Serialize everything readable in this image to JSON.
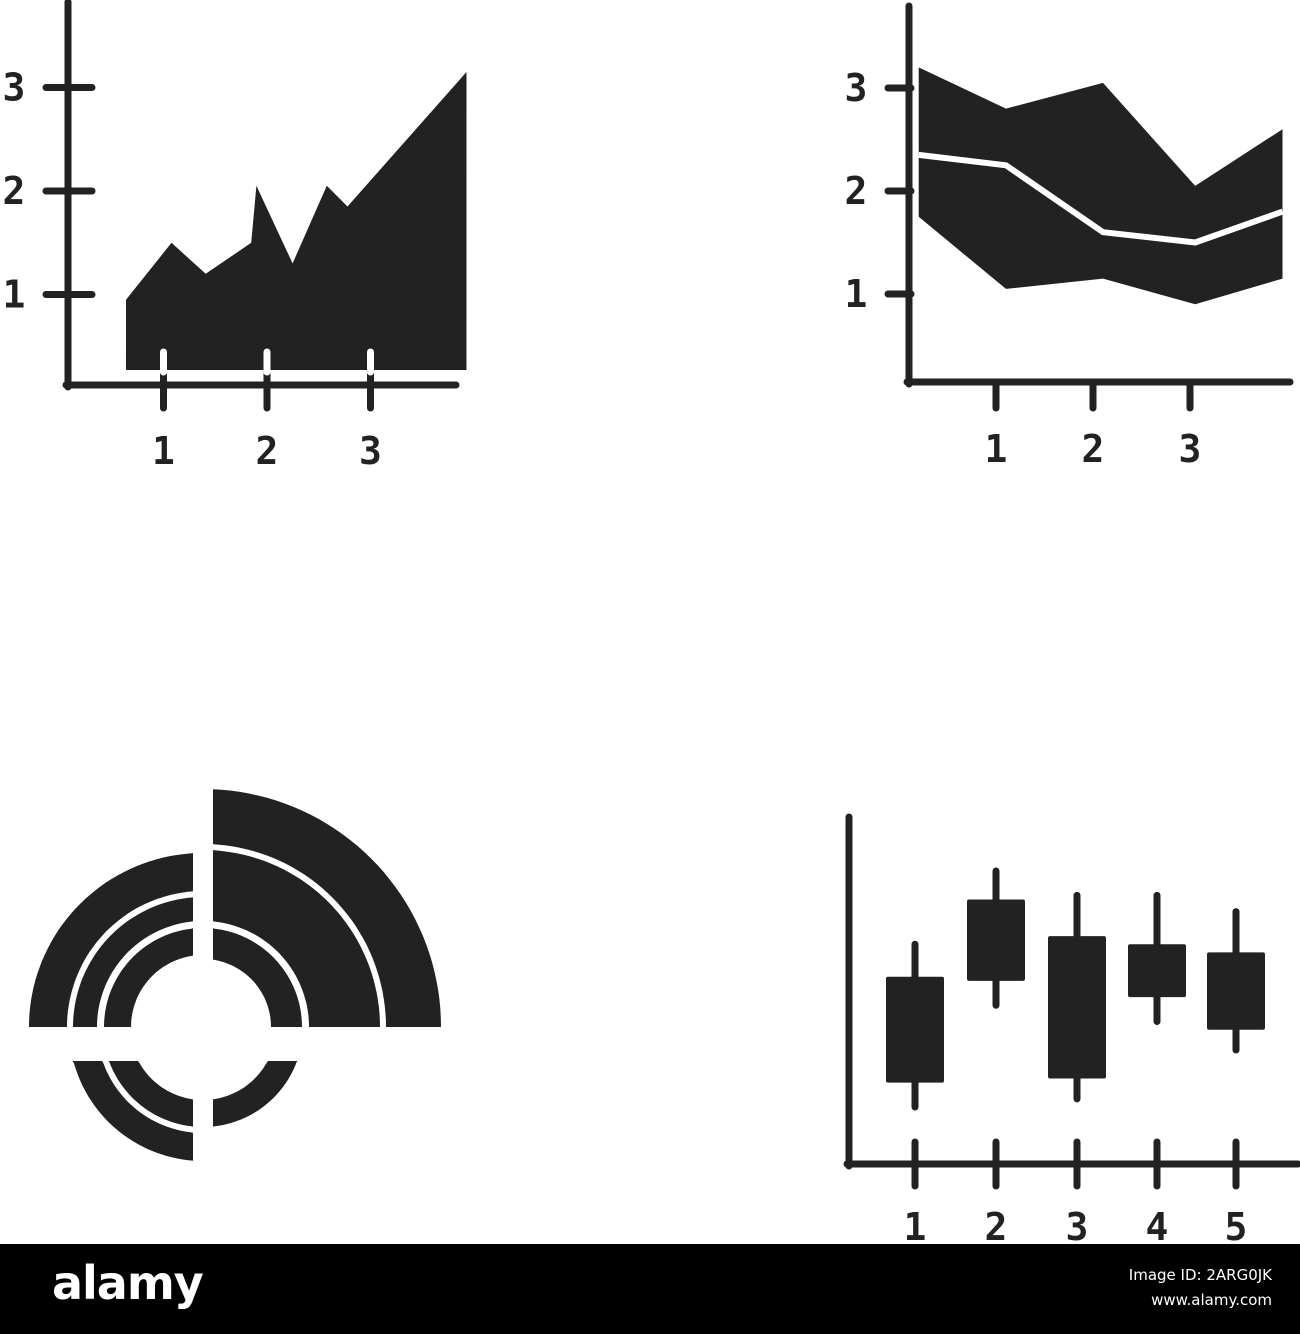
{
  "colors": {
    "ink": "#222222",
    "background": "#ffffff",
    "footer": "#000000"
  },
  "chart_data": [
    {
      "type": "area",
      "x": [
        0.56,
        1,
        1.33,
        1.77,
        1.82,
        2.17,
        2.5,
        2.7,
        3.85
      ],
      "values": [
        0.95,
        1.5,
        1.2,
        1.5,
        2.05,
        1.3,
        2.05,
        1.85,
        3.15
      ],
      "xlabel": "",
      "ylabel": "",
      "x_ticks": [
        "1",
        "2",
        "3"
      ],
      "y_ticks": [
        "1",
        "2",
        "3"
      ],
      "xlim": [
        0,
        4
      ],
      "ylim": [
        0,
        3.5
      ],
      "grid": false
    },
    {
      "type": "area",
      "x": [
        0.1,
        1,
        2,
        2.95,
        3.85
      ],
      "upper": [
        3.2,
        2.8,
        3.05,
        2.05,
        2.6
      ],
      "lower": [
        1.75,
        1.05,
        1.15,
        0.9,
        1.15
      ],
      "series": [
        {
          "values": [
            2.35,
            2.25,
            1.6,
            1.5,
            1.8
          ]
        }
      ],
      "xlabel": "",
      "ylabel": "",
      "x_ticks": [
        "1",
        "2",
        "3"
      ],
      "y_ticks": [
        "1",
        "2",
        "3"
      ],
      "xlim": [
        0,
        4
      ],
      "ylim": [
        0,
        3.5
      ],
      "grid": false
    },
    {
      "type": "pie",
      "rings": [
        {
          "ring": 1,
          "start": 0,
          "end": 90
        },
        {
          "ring": 2,
          "start": 0,
          "end": 90
        },
        {
          "ring": 3,
          "start": 0,
          "end": 90
        },
        {
          "ring": 1,
          "start": 270,
          "end": 360
        },
        {
          "ring": 2,
          "start": 270,
          "end": 360
        },
        {
          "ring": 3,
          "start": 270,
          "end": 360
        },
        {
          "ring": 1,
          "start": 180,
          "end": 270
        },
        {
          "ring": 2,
          "start": 180,
          "end": 270
        },
        {
          "ring": 1,
          "start": 90,
          "end": 180
        }
      ]
    },
    {
      "type": "candlestick",
      "categories": [
        "1",
        "2",
        "3",
        "4",
        "5"
      ],
      "high": [
        5.4,
        7.2,
        6.6,
        6.6,
        6.2
      ],
      "open": [
        4.6,
        6.5,
        5.6,
        5.4,
        5.2
      ],
      "close": [
        2.0,
        4.5,
        2.1,
        4.1,
        3.3
      ],
      "low": [
        1.4,
        3.9,
        1.6,
        3.5,
        2.8
      ],
      "xlabel": "",
      "ylabel": "",
      "ylim": [
        0,
        8.6
      ],
      "grid": false
    }
  ],
  "footer": {
    "logo": "alamy",
    "image_id": "Image ID: 2ARG0JK",
    "site": "www.alamy.com"
  }
}
